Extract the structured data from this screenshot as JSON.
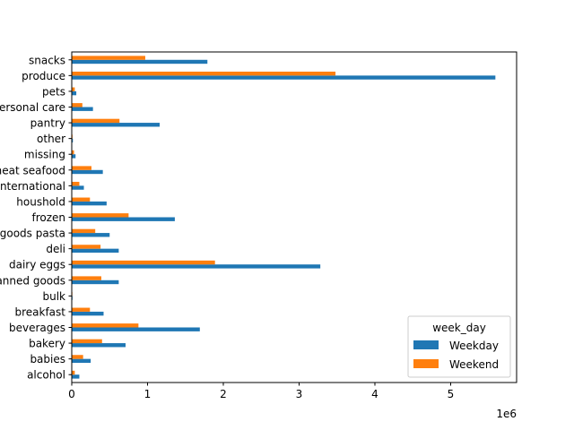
{
  "chart_data": {
    "type": "bar",
    "orientation": "horizontal",
    "categories": [
      "alcohol",
      "babies",
      "bakery",
      "beverages",
      "breakfast",
      "bulk",
      "canned goods",
      "dairy eggs",
      "deli",
      "dry goods pasta",
      "frozen",
      "houshold",
      "international",
      "meat seafood",
      "missing",
      "other",
      "pantry",
      "personal care",
      "pets",
      "produce",
      "snacks"
    ],
    "series": [
      {
        "name": "Weekday",
        "color": "#1f77b4",
        "values": [
          100000,
          250000,
          710000,
          1690000,
          420000,
          10000,
          620000,
          3280000,
          620000,
          500000,
          1360000,
          460000,
          160000,
          410000,
          50000,
          15000,
          1160000,
          280000,
          60000,
          5590000,
          1790000
        ]
      },
      {
        "name": "Weekend",
        "color": "#ff7f0e",
        "values": [
          40000,
          150000,
          400000,
          880000,
          240000,
          8000,
          390000,
          1890000,
          380000,
          310000,
          750000,
          240000,
          100000,
          260000,
          30000,
          10000,
          630000,
          140000,
          40000,
          3480000,
          970000
        ]
      }
    ],
    "xticks": [
      "0",
      "1",
      "2",
      "3",
      "4",
      "5"
    ],
    "xlim": [
      0,
      5870000
    ],
    "x_offset_label": "1e6",
    "legend_title": "week_day",
    "legend_position": "lower-right",
    "grid": false
  }
}
